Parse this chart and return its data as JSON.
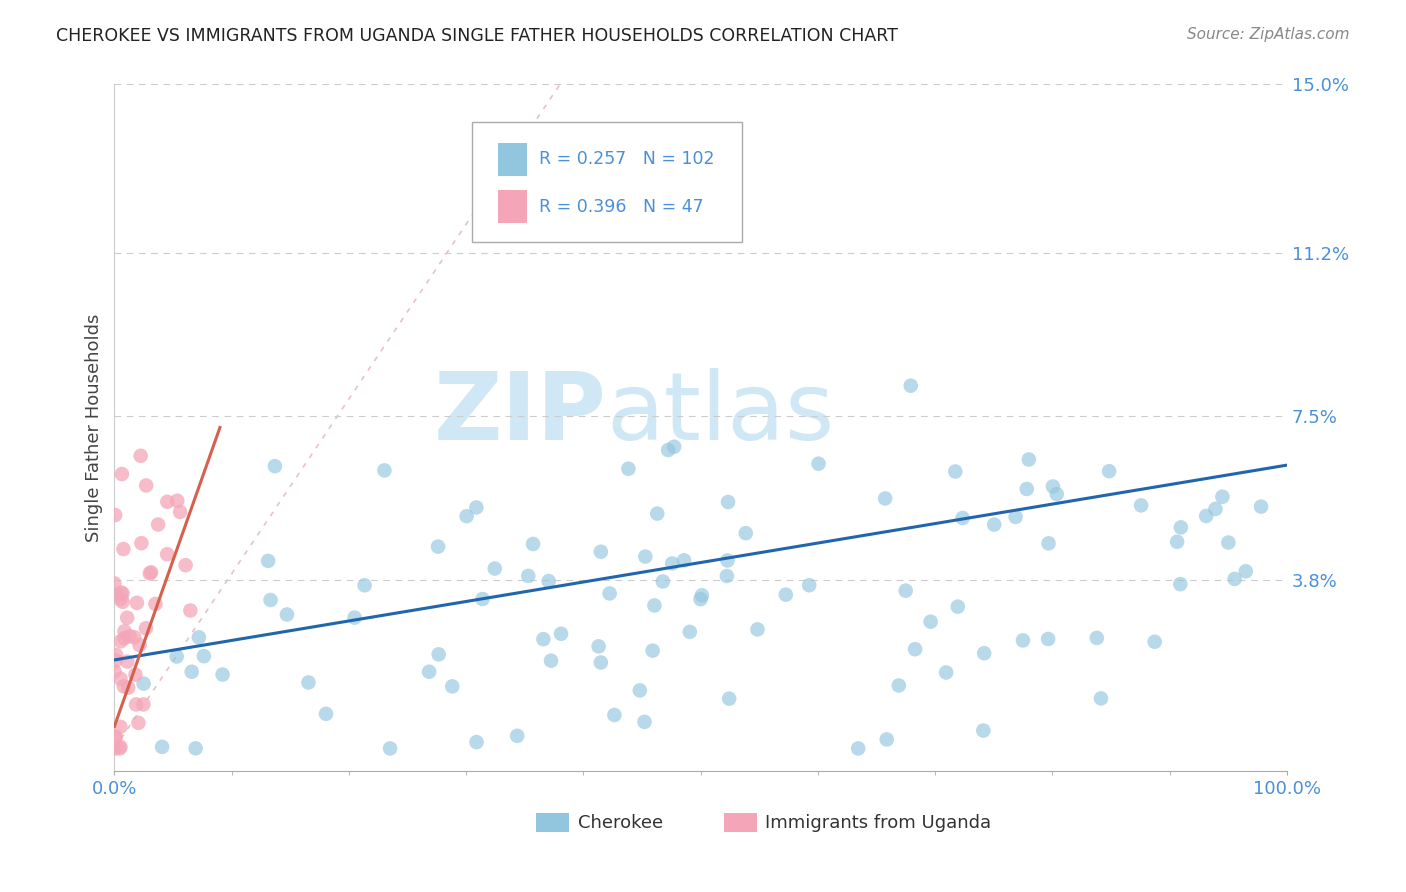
{
  "title": "CHEROKEE VS IMMIGRANTS FROM UGANDA SINGLE FATHER HOUSEHOLDS CORRELATION CHART",
  "source": "Source: ZipAtlas.com",
  "ylabel": "Single Father Households",
  "xlim": [
    0,
    1.0
  ],
  "ylim": [
    0,
    0.15
  ],
  "yticks": [
    0.038,
    0.075,
    0.112,
    0.15
  ],
  "ytick_labels": [
    "3.8%",
    "7.5%",
    "11.2%",
    "15.0%"
  ],
  "xtick_labels": [
    "0.0%",
    "100.0%"
  ],
  "blue_color": "#92c5de",
  "pink_color": "#f4a6b8",
  "trend_blue": "#2166ac",
  "trend_pink": "#d6604d",
  "blue_R": 0.257,
  "blue_N": 102,
  "pink_R": 0.396,
  "pink_N": 47,
  "title_color": "#222222",
  "source_color": "#888888",
  "axis_label_color": "#444444",
  "tick_color": "#4a90d9",
  "watermark_zip": "ZIP",
  "watermark_atlas": "atlas",
  "watermark_color": "#d0e8f5",
  "diag_color": "#e8c0c8"
}
